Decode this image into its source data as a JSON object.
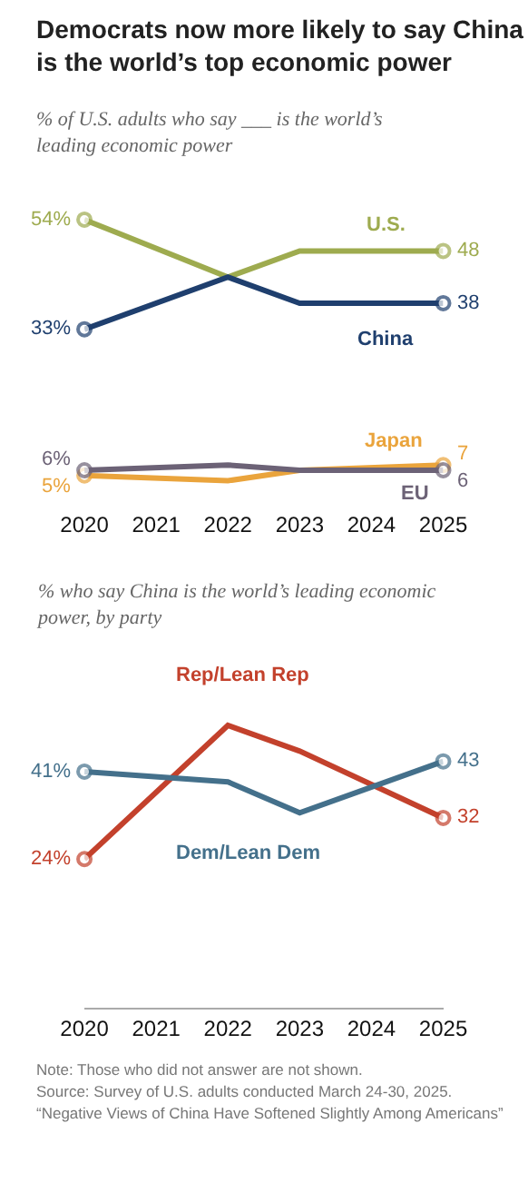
{
  "chart_data": [
    {
      "type": "line",
      "title": "Democrats now more likely to say China is the world’s top economic power",
      "subtitle": "% of U.S. adults who say ___ is the world’s leading economic power",
      "x": [
        2020,
        2022,
        2023,
        2025
      ],
      "xlim": [
        2020,
        2025
      ],
      "xticks": [
        2020,
        2021,
        2022,
        2023,
        2024,
        2025
      ],
      "tick_labels": "x",
      "marker": "circle",
      "series": [
        {
          "name": "U.S.",
          "color": "#9eab4f",
          "values": [
            54,
            43,
            48,
            48
          ],
          "value_labels": [
            "54%",
            null,
            null,
            "48"
          ]
        },
        {
          "name": "China",
          "color": "#1f3f6e",
          "values": [
            33,
            43,
            38,
            38
          ],
          "value_labels": [
            "33%",
            null,
            null,
            "38"
          ]
        },
        {
          "name": "Japan",
          "color": "#eaa43c",
          "values": [
            5,
            4,
            6,
            7
          ],
          "value_labels": [
            "5%",
            null,
            null,
            "7"
          ]
        },
        {
          "name": "EU",
          "color": "#6c6276",
          "values": [
            6,
            7,
            6,
            6
          ],
          "value_labels": [
            "6%",
            null,
            null,
            "6"
          ]
        }
      ]
    },
    {
      "type": "line",
      "subtitle": "% who say China is the world’s leading economic power, by party",
      "x": [
        2020,
        2022,
        2023,
        2025
      ],
      "xlim": [
        2020,
        2025
      ],
      "xticks": [
        2020,
        2021,
        2022,
        2023,
        2024,
        2025
      ],
      "tick_labels": "x",
      "marker": "circle",
      "series": [
        {
          "name": "Rep/Lean Rep",
          "color": "#c3412c",
          "values": [
            24,
            50,
            45,
            32
          ],
          "value_labels": [
            "24%",
            null,
            null,
            "32"
          ]
        },
        {
          "name": "Dem/Lean Dem",
          "color": "#44708b",
          "values": [
            41,
            39,
            33,
            43
          ],
          "value_labels": [
            "41%",
            null,
            null,
            "43"
          ]
        }
      ],
      "annotations": [
        "Note: Those who did not answer are not shown.",
        "Source: Survey of U.S. adults conducted March 24-30, 2025.",
        "“Negative Views of China Have Softened Slightly Among Americans”"
      ]
    }
  ]
}
